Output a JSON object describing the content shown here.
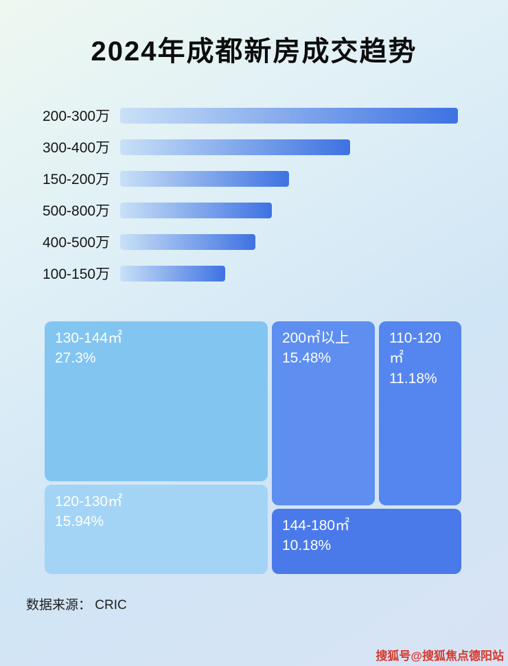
{
  "page": {
    "title": "2024年成都新房成交趋势",
    "source": "数据来源： CRIC",
    "watermark": "搜狐号@搜狐焦点德阳站"
  },
  "chart_data": [
    {
      "type": "bar",
      "orientation": "horizontal",
      "categories": [
        "200-300万",
        "300-400万",
        "150-200万",
        "500-800万",
        "400-500万",
        "100-150万"
      ],
      "values": [
        100,
        68,
        50,
        45,
        40,
        31
      ],
      "value_unit": "relative_length_percent_of_max",
      "axis_labels_shown": false,
      "grid": false,
      "legend": "none",
      "bar_gradient": [
        "#c9e0f7",
        "#3e72e2"
      ]
    },
    {
      "type": "treemap",
      "items": [
        {
          "label": "130-144㎡",
          "value": "27.3%",
          "color": "#83c5f1"
        },
        {
          "label": "120-130㎡",
          "value": "15.94%",
          "color": "#a3d4f6"
        },
        {
          "label": "200㎡以上",
          "value": "15.48%",
          "color": "#5d8ef0"
        },
        {
          "label": "110-120㎡",
          "value": "11.18%",
          "color": "#5585ee"
        },
        {
          "label": "144-180㎡",
          "value": "10.18%",
          "color": "#4a79e9"
        }
      ]
    }
  ]
}
